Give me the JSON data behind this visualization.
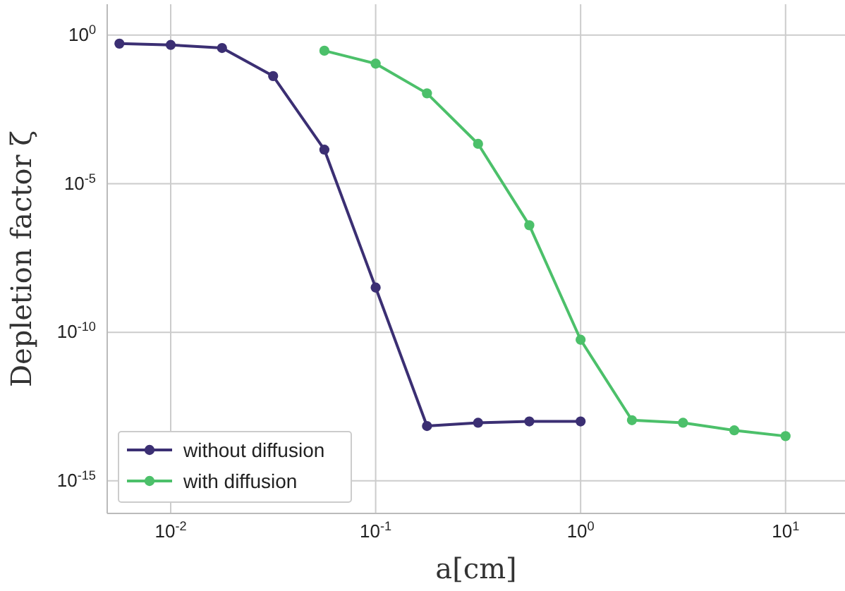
{
  "chart_data": {
    "type": "line",
    "xlabel": "a[cm]",
    "ylabel": "Depletion factor  ζ",
    "x": [
      0.00562,
      0.01,
      0.0178,
      0.0316,
      0.0562,
      0.1,
      0.178,
      0.316,
      0.562,
      1
    ],
    "series": [
      {
        "name": "without diffusion",
        "color": "#3b2f73",
        "values": [
          0.52,
          0.47,
          0.37,
          0.042,
          0.00014,
          3.2e-09,
          7e-14,
          9e-14,
          1e-13,
          1e-13
        ]
      },
      {
        "name": "with diffusion",
        "color": "#4cc06a",
        "x": [
          0.0562,
          0.1,
          0.178,
          0.316,
          0.562,
          1,
          1.78,
          3.16,
          5.62,
          10
        ],
        "values": [
          0.3,
          0.11,
          0.011,
          0.00022,
          4e-07,
          5.6e-11,
          1.1e-13,
          9e-14,
          5e-14,
          3.2e-14
        ]
      }
    ],
    "log": "xy",
    "xlim": [
      0.0049,
      19.5
    ],
    "ylim": [
      8e-17,
      11
    ],
    "xticks": [
      {
        "value": 0.01,
        "label": "10$^{-2}$"
      },
      {
        "value": 0.1,
        "label": "10$^{-1}$"
      },
      {
        "value": 1,
        "label": "10$^{0}$"
      },
      {
        "value": 10,
        "label": "10$^{1}$"
      }
    ],
    "yticks": [
      {
        "value": 1,
        "label": "10$^{0}$"
      },
      {
        "value": 1e-05,
        "label": "10$^{-5}$"
      },
      {
        "value": 1e-10,
        "label": "10$^{-10}$"
      },
      {
        "value": 1e-15,
        "label": "10$^{-15}$"
      }
    ],
    "grid": true,
    "legend": "bottom left",
    "marker": "circle",
    "line_style": "solid"
  }
}
